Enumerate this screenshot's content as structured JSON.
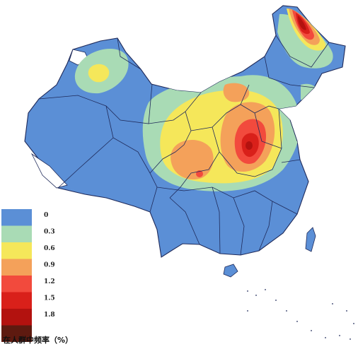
{
  "map": {
    "legend": {
      "title": "在人群中频率（%）",
      "levels": [
        {
          "label": "0",
          "color": "#5b8fd6"
        },
        {
          "label": "0.3",
          "color": "#a9dbb5"
        },
        {
          "label": "0.6",
          "color": "#f5e75a"
        },
        {
          "label": "0.9",
          "color": "#f4a15a"
        },
        {
          "label": "1.2",
          "color": "#f24a3d"
        },
        {
          "label": "1.5",
          "color": "#d9201a"
        },
        {
          "label": "1.8",
          "color": "#b3120f"
        },
        {
          "label": "",
          "color": "#5e1a10"
        }
      ]
    },
    "colors": {
      "ocean": "#ffffff",
      "base": "#5b8fd6",
      "border": "#1f2a5a"
    }
  }
}
